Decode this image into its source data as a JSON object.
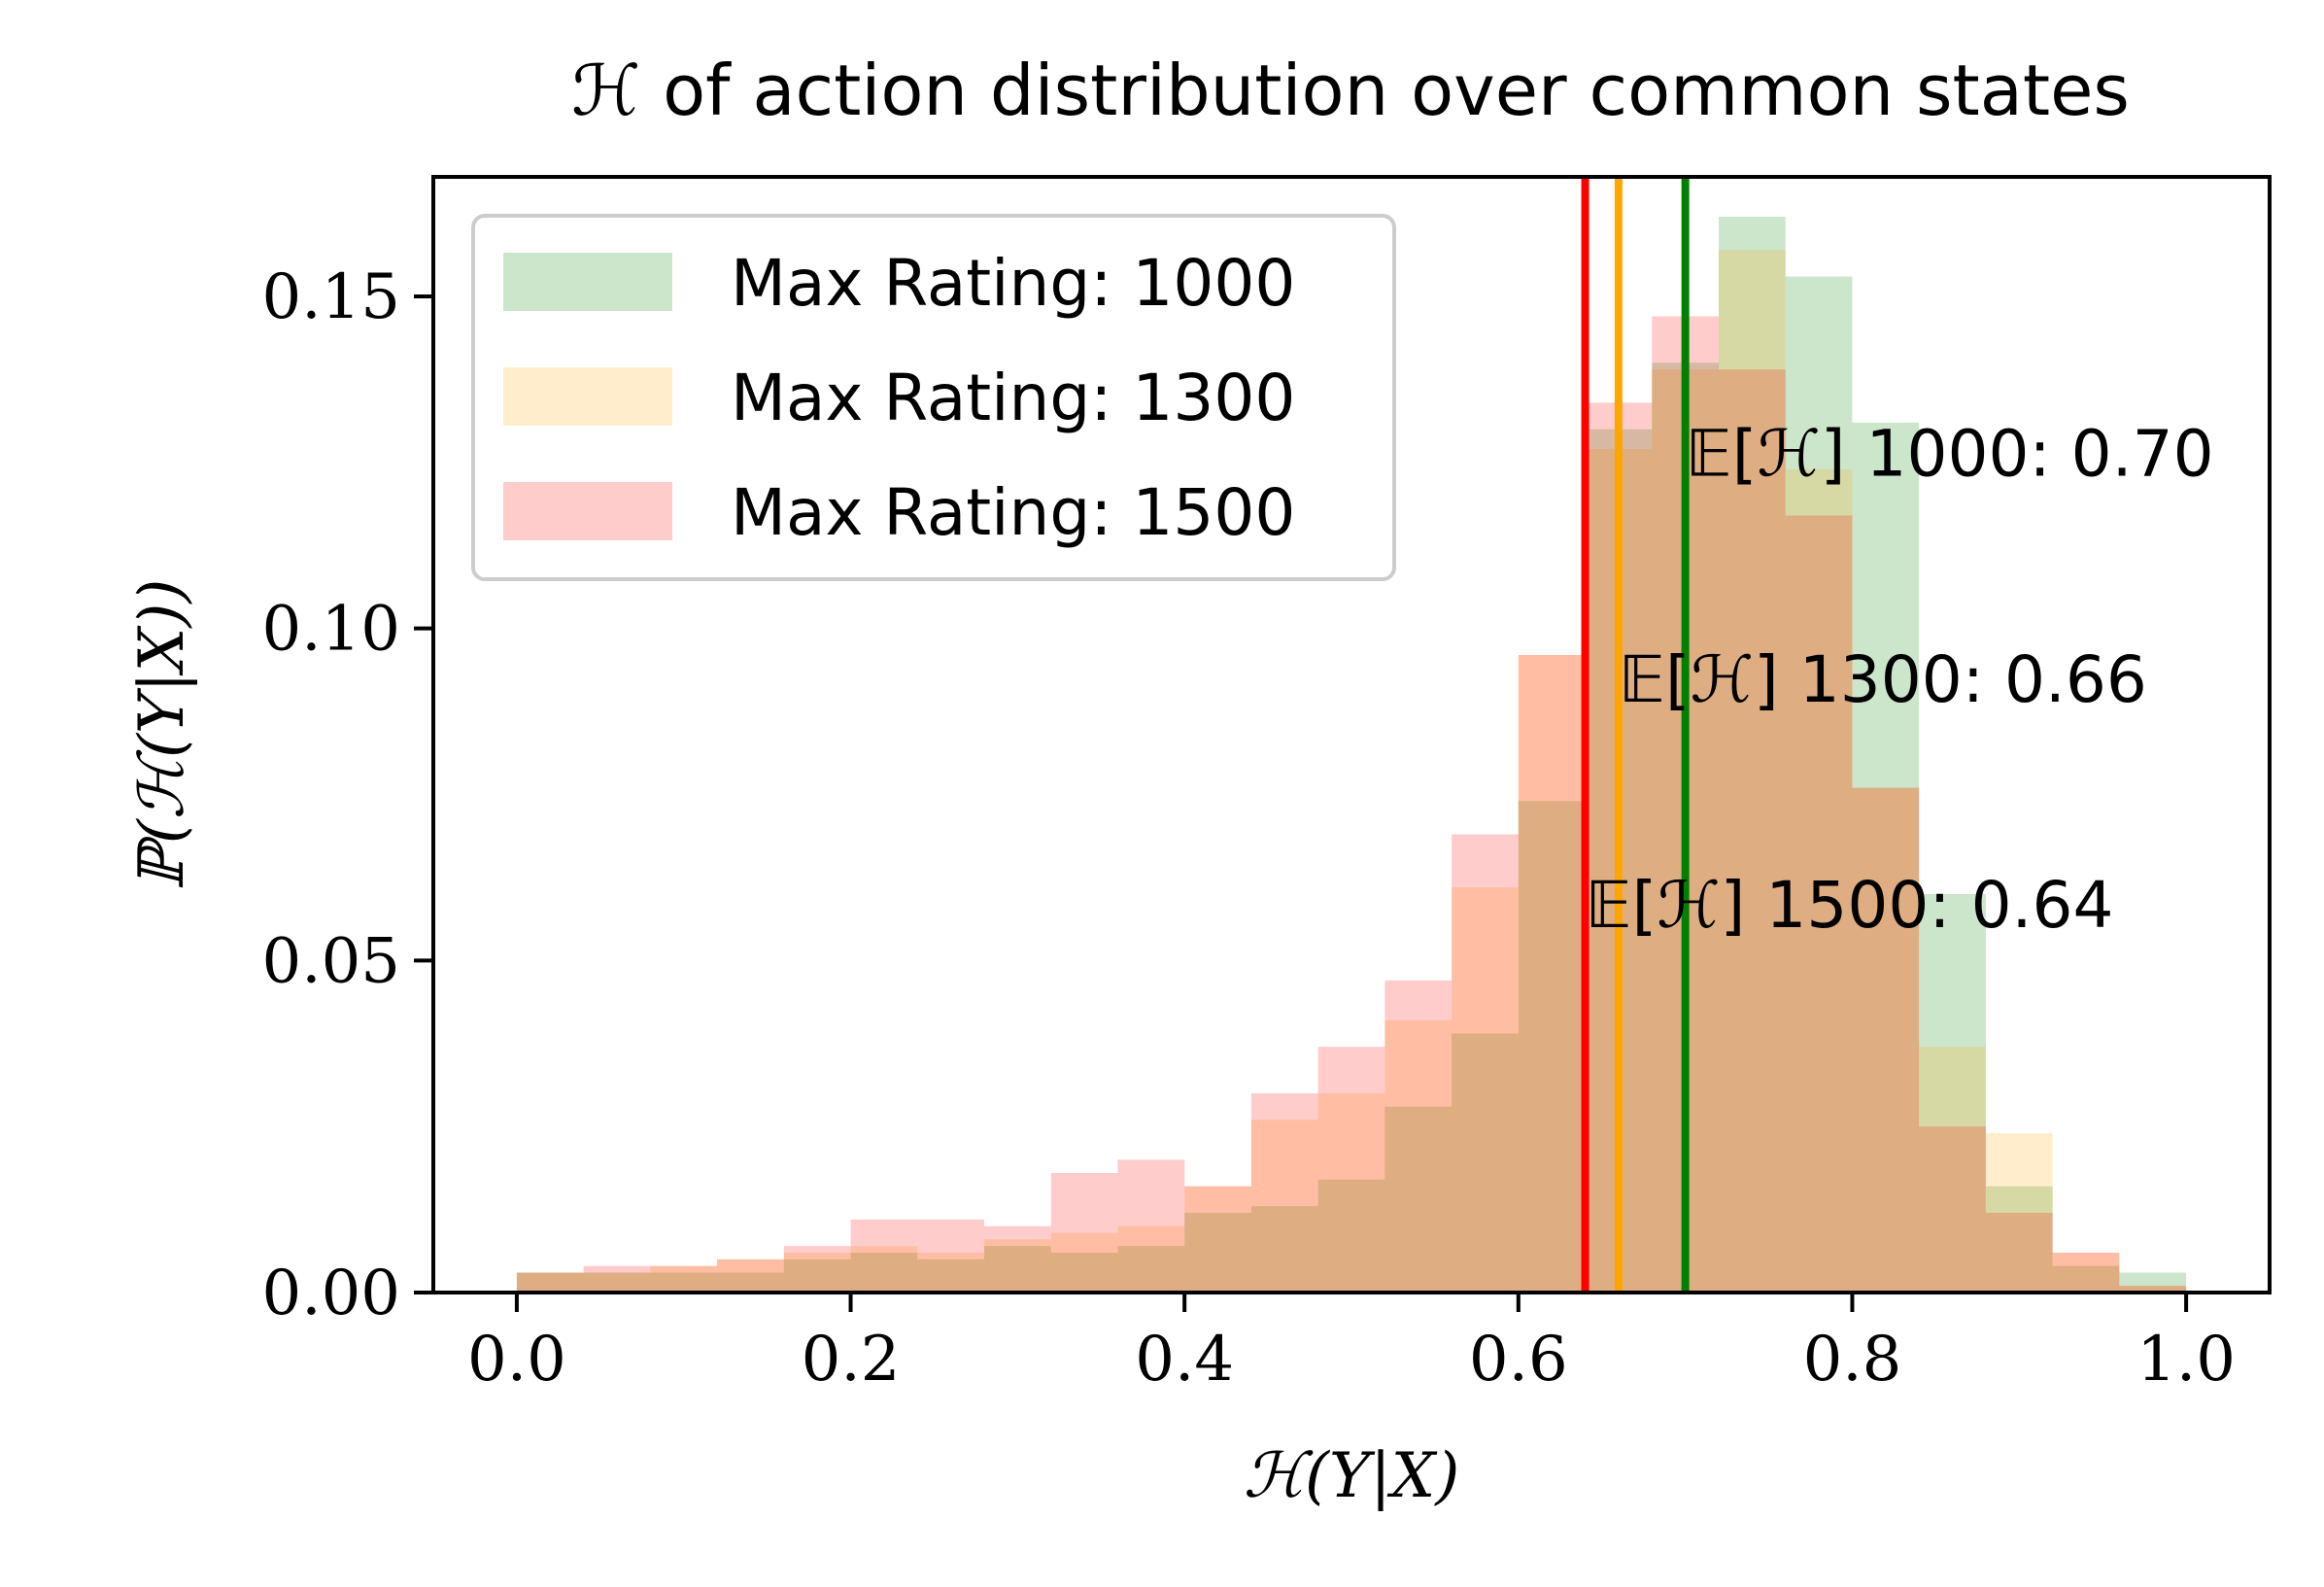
{
  "chart_data": {
    "type": "bar",
    "subtype": "overlapping-histogram",
    "title": "ℋ of action distribution over common states",
    "xlabel": "ℋ(Y|X)",
    "ylabel": "ℙ(ℋ(Y|X))",
    "xlim": [
      -0.05,
      1.05
    ],
    "ylim": [
      0,
      0.168
    ],
    "xticks": [
      0.0,
      0.2,
      0.4,
      0.6,
      0.8,
      1.0
    ],
    "xtick_labels": [
      "0.0",
      "0.2",
      "0.4",
      "0.6",
      "0.8",
      "1.0"
    ],
    "yticks": [
      0.0,
      0.05,
      0.1,
      0.15
    ],
    "ytick_labels": [
      "0.00",
      "0.05",
      "0.10",
      "0.15"
    ],
    "grid": false,
    "legend_position": "top-left",
    "bin_edges": [
      0.0,
      0.04,
      0.08,
      0.12,
      0.16,
      0.2,
      0.24,
      0.28,
      0.32,
      0.36,
      0.4,
      0.44,
      0.48,
      0.52,
      0.56,
      0.6,
      0.64,
      0.68,
      0.72,
      0.76,
      0.8,
      0.84,
      0.88,
      0.92,
      0.96,
      1.0
    ],
    "series": [
      {
        "name": "Max Rating: 1000",
        "color": "#008000",
        "values": [
          0.003,
          0.003,
          0.003,
          0.003,
          0.005,
          0.006,
          0.005,
          0.007,
          0.006,
          0.007,
          0.012,
          0.013,
          0.017,
          0.028,
          0.039,
          0.074,
          0.13,
          0.14,
          0.162,
          0.153,
          0.131,
          0.06,
          0.016,
          0.004,
          0.003
        ]
      },
      {
        "name": "Max Rating: 1300",
        "color": "#FFA500",
        "values": [
          0.003,
          0.003,
          0.004,
          0.005,
          0.006,
          0.007,
          0.006,
          0.008,
          0.009,
          0.01,
          0.016,
          0.026,
          0.03,
          0.041,
          0.061,
          0.096,
          0.127,
          0.139,
          0.157,
          0.124,
          0.076,
          0.037,
          0.024,
          0.006,
          0.001
        ]
      },
      {
        "name": "Max Rating: 1500",
        "color": "#FF0000",
        "values": [
          0.003,
          0.004,
          0.004,
          0.005,
          0.007,
          0.011,
          0.011,
          0.01,
          0.018,
          0.02,
          0.016,
          0.03,
          0.037,
          0.047,
          0.069,
          0.096,
          0.134,
          0.147,
          0.139,
          0.117,
          0.076,
          0.025,
          0.012,
          0.006,
          0.001
        ]
      }
    ],
    "mean_lines": [
      {
        "value": 0.7,
        "color": "#008000",
        "label": "𝔼[ℋ] 1000: 0.70",
        "label_y": 0.123
      },
      {
        "value": 0.66,
        "color": "#FFA500",
        "label": "𝔼[ℋ] 1300: 0.66",
        "label_y": 0.089
      },
      {
        "value": 0.64,
        "color": "#FF0000",
        "label": "𝔼[ℋ] 1500: 0.64",
        "label_y": 0.055
      }
    ]
  }
}
